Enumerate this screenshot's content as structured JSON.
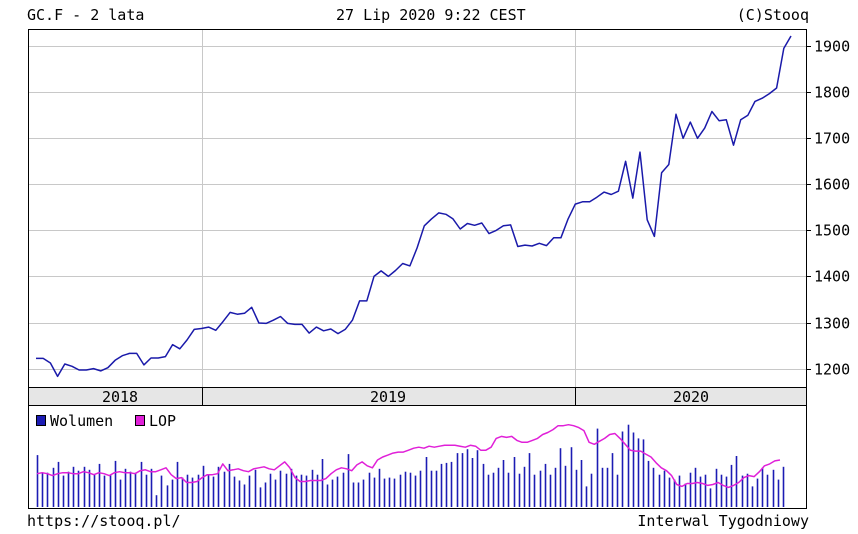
{
  "header": {
    "left": "GC.F - 2 lata",
    "center": "27 Lip 2020 9:22 CEST",
    "right": "(C)Stooq"
  },
  "footer": {
    "left": "https://stooq.pl/",
    "right": "Interwal Tygodniowy"
  },
  "colors": {
    "price_line": "#1a1aaa",
    "volume_bar": "#1c1cb4",
    "lop_line": "#e020d8",
    "grid": "#c8c8c8",
    "year_band": "#e6e6e6"
  },
  "chart_data": [
    {
      "type": "line",
      "series": [
        {
          "values": [
            1222,
            1222,
            1212,
            1183,
            1210,
            1205,
            1197,
            1197,
            1200,
            1195,
            1202,
            1218,
            1228,
            1233,
            1233,
            1208,
            1223,
            1223,
            1226,
            1252,
            1243,
            1262,
            1285,
            1287,
            1290,
            1283,
            1302,
            1322,
            1318,
            1320,
            1333,
            1299,
            1298,
            1305,
            1313,
            1298,
            1296,
            1296,
            1277,
            1290,
            1282,
            1286,
            1276,
            1285,
            1305,
            1347,
            1347,
            1400,
            1412,
            1400,
            1413,
            1428,
            1423,
            1462,
            1510,
            1525,
            1538,
            1535,
            1525,
            1503,
            1515,
            1511,
            1516,
            1493,
            1500,
            1510,
            1512,
            1465,
            1468,
            1466,
            1472,
            1467,
            1484,
            1484,
            1525,
            1557,
            1562,
            1562,
            1572,
            1583,
            1578,
            1585,
            1650,
            1570,
            1670,
            1523,
            1487,
            1625,
            1643,
            1752,
            1700,
            1735,
            1700,
            1722,
            1758,
            1738,
            1740,
            1685,
            1740,
            1750,
            1780,
            1787,
            1797,
            1809,
            1895,
            1922
          ]
        }
      ],
      "ylim": [
        1160,
        1935
      ],
      "yticks": [
        1200,
        1300,
        1400,
        1500,
        1600,
        1700,
        1800,
        1900
      ],
      "x_labels": [
        "2018",
        "2019",
        "2020"
      ],
      "grid": true
    },
    {
      "type": "bar",
      "legend": [
        "Wolumen",
        "LOP"
      ],
      "legend_position": "top-left",
      "series": [
        {
          "name": "Wolumen",
          "type": "bar",
          "values": [
            0.53,
            0.35,
            0.35,
            0.4,
            0.46,
            0.32,
            0.36,
            0.41,
            0.37,
            0.41,
            0.38,
            0.33,
            0.44,
            0.32,
            0.33,
            0.47,
            0.28,
            0.39,
            0.36,
            0.35,
            0.46,
            0.33,
            0.39,
            0.12,
            0.32,
            0.22,
            0.28,
            0.46,
            0.3,
            0.33,
            0.3,
            0.33,
            0.42,
            0.33,
            0.31,
            0.41,
            0.36,
            0.44,
            0.31,
            0.27,
            0.23,
            0.32,
            0.38,
            0.2,
            0.25,
            0.34,
            0.28,
            0.37,
            0.34,
            0.39,
            0.32,
            0.33,
            0.32,
            0.38,
            0.33,
            0.49,
            0.23,
            0.28,
            0.31,
            0.35,
            0.54,
            0.25,
            0.25,
            0.28,
            0.35,
            0.3,
            0.39,
            0.29,
            0.3,
            0.29,
            0.33,
            0.36,
            0.35,
            0.32,
            0.37,
            0.51,
            0.37,
            0.37,
            0.44,
            0.45,
            0.46,
            0.55,
            0.55,
            0.59,
            0.5,
            0.58,
            0.44,
            0.33,
            0.35,
            0.4,
            0.48,
            0.35,
            0.51,
            0.34,
            0.41,
            0.55,
            0.33,
            0.37,
            0.44,
            0.33,
            0.4,
            0.6,
            0.42,
            0.61,
            0.38,
            0.48,
            0.21,
            0.34,
            0.8,
            0.4,
            0.4,
            0.55,
            0.33,
            0.77,
            0.84,
            0.76,
            0.7,
            0.69,
            0.47,
            0.4,
            0.33,
            0.37,
            0.3,
            0.28,
            0.32,
            0.24,
            0.35,
            0.4,
            0.31,
            0.33,
            0.19,
            0.39,
            0.33,
            0.31,
            0.43,
            0.52,
            0.32,
            0.34,
            0.21,
            0.29,
            0.4,
            0.33,
            0.38,
            0.28,
            0.41
          ]
        },
        {
          "name": "LOP",
          "type": "line",
          "values": [
            0.34,
            0.35,
            0.34,
            0.32,
            0.34,
            0.35,
            0.35,
            0.34,
            0.34,
            0.36,
            0.35,
            0.33,
            0.35,
            0.34,
            0.32,
            0.35,
            0.36,
            0.35,
            0.35,
            0.34,
            0.37,
            0.38,
            0.36,
            0.36,
            0.38,
            0.4,
            0.33,
            0.29,
            0.3,
            0.25,
            0.25,
            0.26,
            0.3,
            0.33,
            0.33,
            0.34,
            0.44,
            0.37,
            0.38,
            0.39,
            0.37,
            0.36,
            0.39,
            0.4,
            0.41,
            0.39,
            0.38,
            0.42,
            0.46,
            0.4,
            0.3,
            0.26,
            0.26,
            0.27,
            0.27,
            0.27,
            0.29,
            0.34,
            0.38,
            0.4,
            0.39,
            0.37,
            0.43,
            0.46,
            0.42,
            0.4,
            0.48,
            0.51,
            0.53,
            0.55,
            0.56,
            0.56,
            0.58,
            0.6,
            0.61,
            0.6,
            0.62,
            0.61,
            0.62,
            0.63,
            0.63,
            0.63,
            0.62,
            0.61,
            0.63,
            0.62,
            0.58,
            0.58,
            0.61,
            0.7,
            0.72,
            0.71,
            0.72,
            0.68,
            0.66,
            0.66,
            0.68,
            0.7,
            0.74,
            0.76,
            0.79,
            0.83,
            0.83,
            0.84,
            0.83,
            0.81,
            0.78,
            0.66,
            0.64,
            0.67,
            0.7,
            0.74,
            0.75,
            0.7,
            0.64,
            0.58,
            0.57,
            0.57,
            0.54,
            0.51,
            0.45,
            0.4,
            0.37,
            0.32,
            0.23,
            0.21,
            0.24,
            0.24,
            0.25,
            0.24,
            0.22,
            0.23,
            0.25,
            0.22,
            0.2,
            0.22,
            0.25,
            0.3,
            0.32,
            0.31,
            0.36,
            0.42,
            0.44,
            0.47,
            0.48
          ]
        }
      ]
    }
  ]
}
